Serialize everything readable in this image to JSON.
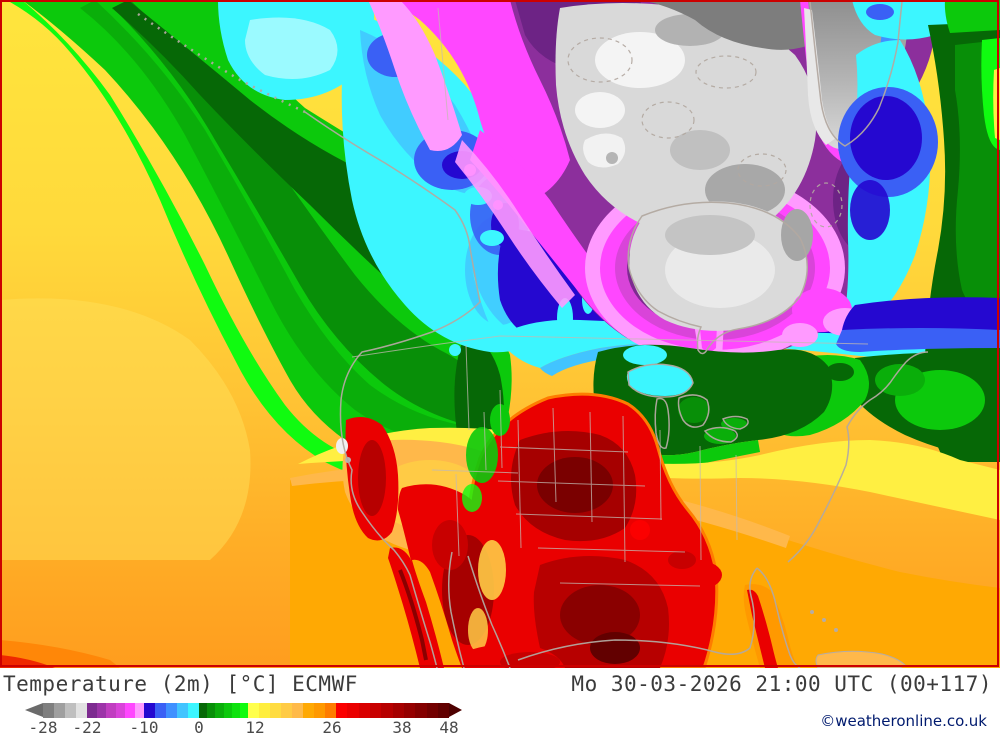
{
  "legend": {
    "title": "Temperature (2m) [°C] ECMWF",
    "datetime": "Mo 30-03-2026 21:00 UTC (00+117)",
    "copyright": "©weatheronline.co.uk"
  },
  "chart_data": {
    "type": "heatmap",
    "title": "Temperature (2m) [°C] ECMWF",
    "valid_time": "Mo 30-03-2026 21:00 UTC (00+117)",
    "region": "North America",
    "scale_unit": "°C",
    "scale_ticks": [
      -28,
      -22,
      -10,
      0,
      12,
      26,
      38,
      48
    ],
    "colorbar": {
      "left_arrow_color": "#6b6b6b",
      "right_arrow_color": "#4e0000",
      "segments": [
        {
          "c": "#7f7f7f",
          "w": 11
        },
        {
          "c": "#9f9f9f",
          "w": 11
        },
        {
          "c": "#bfbfbf",
          "w": 11
        },
        {
          "c": "#e2e2e2",
          "w": 11
        },
        {
          "c": "#7d2b90",
          "w": 9.5
        },
        {
          "c": "#9c34a8",
          "w": 9.5
        },
        {
          "c": "#c03ec0",
          "w": 9.5
        },
        {
          "c": "#d944d9",
          "w": 9.5
        },
        {
          "c": "#ff47ff",
          "w": 9.5
        },
        {
          "c": "#ff9aff",
          "w": 9.5
        },
        {
          "c": "#2508d0",
          "w": 11
        },
        {
          "c": "#3a60f5",
          "w": 11
        },
        {
          "c": "#3f90ff",
          "w": 11
        },
        {
          "c": "#42c4ff",
          "w": 11
        },
        {
          "c": "#3cf6ff",
          "w": 11
        },
        {
          "c": "#066806",
          "w": 8.2
        },
        {
          "c": "#088f08",
          "w": 8.2
        },
        {
          "c": "#0aae0a",
          "w": 8.2
        },
        {
          "c": "#0cc90c",
          "w": 8.2
        },
        {
          "c": "#0ee20e",
          "w": 8.2
        },
        {
          "c": "#10fb10",
          "w": 8.2
        },
        {
          "c": "#ffff4d",
          "w": 11
        },
        {
          "c": "#ffee3e",
          "w": 11
        },
        {
          "c": "#ffdc41",
          "w": 11
        },
        {
          "c": "#ffcb45",
          "w": 11
        },
        {
          "c": "#ffba49",
          "w": 11
        },
        {
          "c": "#ffa903",
          "w": 11
        },
        {
          "c": "#ff9900",
          "w": 11
        },
        {
          "c": "#ff7c00",
          "w": 11
        },
        {
          "c": "#fb0000",
          "w": 11.3
        },
        {
          "c": "#ea0000",
          "w": 11.3
        },
        {
          "c": "#d90000",
          "w": 11.3
        },
        {
          "c": "#c80000",
          "w": 11.3
        },
        {
          "c": "#b70000",
          "w": 11.3
        },
        {
          "c": "#a60000",
          "w": 11.3
        },
        {
          "c": "#950000",
          "w": 11.3
        },
        {
          "c": "#840000",
          "w": 11.3
        },
        {
          "c": "#730000",
          "w": 11.3
        },
        {
          "c": "#620000",
          "w": 11.3
        }
      ],
      "ticks": [
        {
          "label": "-28",
          "px": 0
        },
        {
          "label": "-22",
          "px": 44
        },
        {
          "label": "-10",
          "px": 101
        },
        {
          "label": "0",
          "px": 156
        },
        {
          "label": "12",
          "px": 212
        },
        {
          "label": "26",
          "px": 289
        },
        {
          "label": "38",
          "px": 359
        },
        {
          "label": "48",
          "px": 406
        }
      ]
    }
  }
}
